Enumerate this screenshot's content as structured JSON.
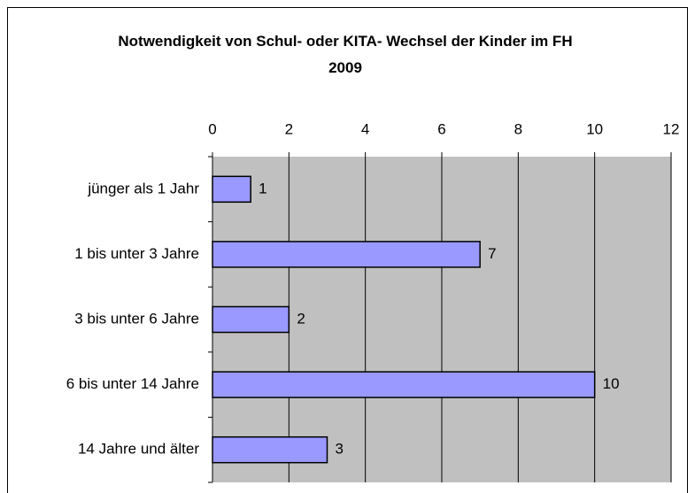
{
  "chart_data": {
    "type": "bar",
    "orientation": "horizontal",
    "title": "Notwendigkeit von Schul- oder KITA- Wechsel der Kinder im FH 2009",
    "categories": [
      "jünger als 1 Jahr",
      "1 bis unter 3 Jahre",
      "3 bis unter 6 Jahre",
      "6 bis unter 14 Jahre",
      "14 Jahre und älter"
    ],
    "values": [
      1,
      7,
      2,
      10,
      3
    ],
    "color": "#9999ff",
    "plot_background": "#c0c0c0",
    "xlim": [
      0,
      12
    ],
    "xticks": [
      0,
      2,
      4,
      6,
      8,
      10,
      12
    ],
    "grid": true
  }
}
